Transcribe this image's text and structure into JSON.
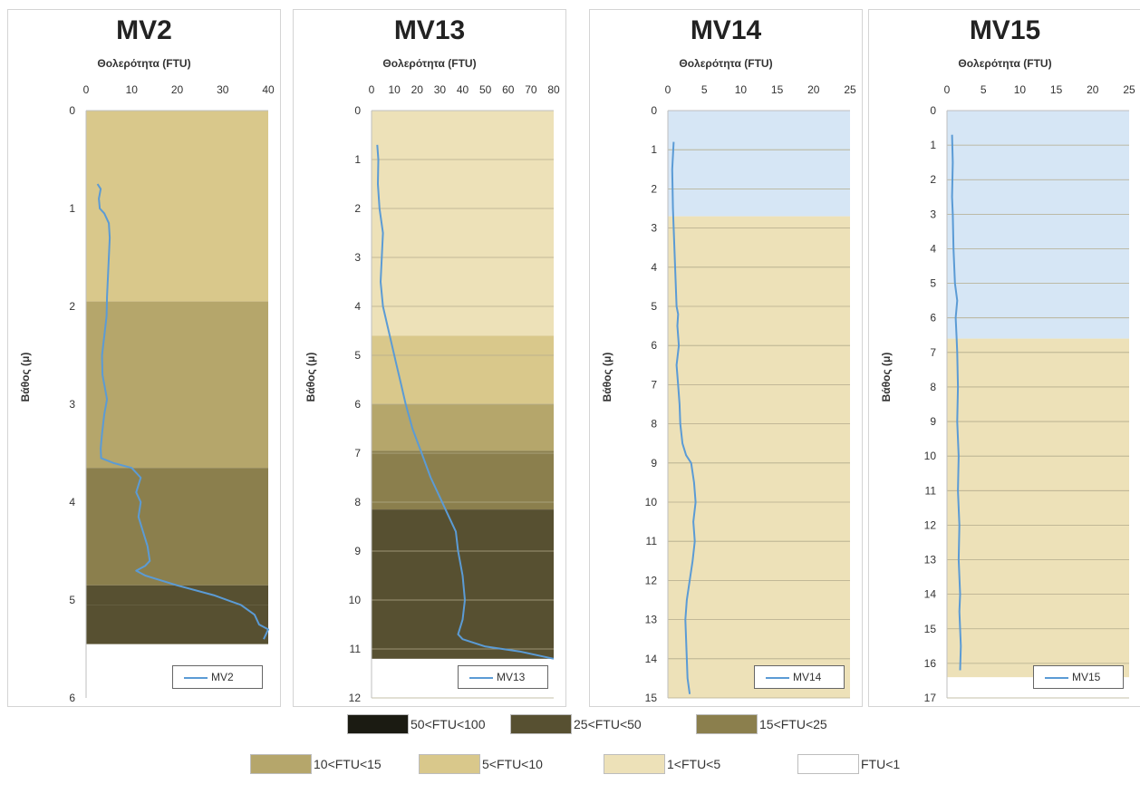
{
  "colors": {
    "z50_100": "#1b1b12",
    "z25_50": "#575031",
    "z15_25": "#8b7f4d",
    "z10_15": "#b5a66b",
    "z5_10": "#d9c88b",
    "z1_5": "#ede1b8",
    "z0_1": "#ffffff",
    "clear": "#d6e6f5",
    "line": "#5B9BD5"
  },
  "zone_legend": [
    {
      "label": "50<FTU<100",
      "color": "#1b1b12"
    },
    {
      "label": "25<FTU<50",
      "color": "#575031"
    },
    {
      "label": "15<FTU<25",
      "color": "#8b7f4d"
    },
    {
      "label": "10<FTU<15",
      "color": "#b5a66b"
    },
    {
      "label": "5<FTU<10",
      "color": "#d9c88b"
    },
    {
      "label": "1<FTU<5",
      "color": "#ede1b8"
    },
    {
      "label": "FTU<1",
      "color": "#ffffff"
    }
  ],
  "chart_data": [
    {
      "type": "line",
      "title": "MV2",
      "xlabel": "Θολερότητα (FTU)",
      "ylabel": "Βάθος (μ)",
      "xlim": [
        0,
        40
      ],
      "xticks": [
        0,
        10,
        20,
        30,
        40
      ],
      "ylim": [
        0,
        6
      ],
      "yticks": [
        0,
        1,
        2,
        3,
        4,
        5,
        6
      ],
      "y_inverted": true,
      "grid": false,
      "legend_position": "bottom-right",
      "bands": [
        {
          "from": 0,
          "to": 1.95,
          "color": "#d9c88b"
        },
        {
          "from": 1.95,
          "to": 3.65,
          "color": "#b5a66b"
        },
        {
          "from": 3.65,
          "to": 4.85,
          "color": "#8b7f4d"
        },
        {
          "from": 4.85,
          "to": 5.05,
          "color": "#575031"
        },
        {
          "from": 5.05,
          "to": 5.45,
          "color": "#575031"
        }
      ],
      "series": [
        {
          "name": "MV2",
          "x": [
            2.5,
            3.2,
            2.8,
            3.0,
            4.0,
            5.0,
            5.2,
            5.0,
            4.8,
            4.6,
            4.5,
            4.0,
            3.5,
            3.6,
            4.0,
            4.6,
            4.0,
            3.5,
            3.2,
            3.3,
            6.0,
            10.0,
            12.0,
            11.0,
            12.0,
            11.5,
            12.5,
            13.5,
            14.0,
            13.0,
            11.0,
            13.0,
            20.0,
            28.0,
            34.0,
            37.0,
            38.0,
            40.0,
            39.0
          ],
          "y": [
            0.75,
            0.8,
            0.9,
            1.0,
            1.05,
            1.15,
            1.3,
            1.5,
            1.7,
            1.9,
            2.1,
            2.3,
            2.5,
            2.7,
            2.8,
            2.95,
            3.1,
            3.3,
            3.45,
            3.55,
            3.6,
            3.65,
            3.75,
            3.9,
            4.0,
            4.15,
            4.3,
            4.45,
            4.6,
            4.65,
            4.7,
            4.75,
            4.85,
            4.95,
            5.05,
            5.15,
            5.25,
            5.3,
            5.4
          ]
        }
      ]
    },
    {
      "type": "line",
      "title": "MV13",
      "xlabel": "Θολερότητα (FTU)",
      "ylabel": "Βάθος (μ)",
      "xlim": [
        0,
        80
      ],
      "xticks": [
        0,
        10,
        20,
        30,
        40,
        50,
        60,
        70,
        80
      ],
      "ylim": [
        0,
        12
      ],
      "yticks": [
        0,
        1,
        2,
        3,
        4,
        5,
        6,
        7,
        8,
        9,
        10,
        11,
        12
      ],
      "y_inverted": true,
      "grid": true,
      "legend_position": "bottom-right",
      "bands": [
        {
          "from": 0,
          "to": 4.6,
          "color": "#ede1b8"
        },
        {
          "from": 4.6,
          "to": 6.0,
          "color": "#d9c88b"
        },
        {
          "from": 6.0,
          "to": 6.95,
          "color": "#b5a66b"
        },
        {
          "from": 6.95,
          "to": 8.15,
          "color": "#8b7f4d"
        },
        {
          "from": 8.15,
          "to": 11.2,
          "color": "#575031"
        }
      ],
      "series": [
        {
          "name": "MV13",
          "x": [
            2.5,
            3.0,
            2.8,
            3.5,
            5.0,
            4.5,
            4.0,
            5.0,
            7.0,
            9.0,
            11.0,
            13.0,
            15.0,
            18.0,
            22.0,
            26.0,
            30.0,
            33.0,
            37.0,
            38.0,
            40.0,
            41.0,
            40.0,
            38.0,
            40.0,
            50.0,
            65.0,
            80.0
          ],
          "y": [
            0.7,
            1.0,
            1.5,
            2.0,
            2.5,
            3.0,
            3.5,
            4.0,
            4.4,
            4.8,
            5.2,
            5.6,
            6.0,
            6.5,
            7.0,
            7.5,
            7.9,
            8.2,
            8.6,
            9.0,
            9.5,
            10.0,
            10.4,
            10.7,
            10.8,
            10.95,
            11.05,
            11.2
          ]
        }
      ]
    },
    {
      "type": "line",
      "title": "MV14",
      "xlabel": "Θολερότητα (FTU)",
      "ylabel": "Βάθος (μ)",
      "xlim": [
        0,
        25
      ],
      "xticks": [
        0,
        5,
        10,
        15,
        20,
        25
      ],
      "ylim": [
        0,
        15
      ],
      "yticks": [
        0,
        1,
        2,
        3,
        4,
        5,
        6,
        7,
        8,
        9,
        10,
        11,
        12,
        13,
        14,
        15
      ],
      "y_inverted": true,
      "grid": true,
      "legend_position": "bottom-right",
      "bands": [
        {
          "from": 0,
          "to": 2.7,
          "color": "#d6e6f5"
        },
        {
          "from": 2.7,
          "to": 15,
          "color": "#ede1b8"
        }
      ],
      "series": [
        {
          "name": "MV14",
          "x": [
            0.8,
            0.6,
            0.7,
            0.8,
            0.9,
            1.0,
            1.1,
            1.2,
            1.4,
            1.3,
            1.5,
            1.2,
            1.4,
            1.6,
            1.7,
            2.0,
            2.5,
            3.2,
            3.6,
            3.8,
            3.5,
            3.7,
            3.4,
            3.0,
            2.6,
            2.4,
            2.5,
            2.7,
            3.0
          ],
          "y": [
            0.8,
            1.5,
            2.5,
            3.0,
            3.5,
            4.0,
            4.5,
            5.0,
            5.2,
            5.5,
            6.0,
            6.5,
            7.0,
            7.5,
            8.0,
            8.5,
            8.8,
            9.0,
            9.5,
            10.0,
            10.5,
            11.0,
            11.5,
            12.0,
            12.5,
            13.0,
            13.5,
            14.5,
            14.9
          ]
        }
      ]
    },
    {
      "type": "line",
      "title": "MV15",
      "xlabel": "Θολερότητα (FTU)",
      "ylabel": "Βάθος (μ)",
      "xlim": [
        0,
        25
      ],
      "xticks": [
        0,
        5,
        10,
        15,
        20,
        25
      ],
      "ylim": [
        0,
        17
      ],
      "yticks": [
        0,
        1,
        2,
        3,
        4,
        5,
        6,
        7,
        8,
        9,
        10,
        11,
        12,
        13,
        14,
        15,
        16,
        17
      ],
      "y_inverted": true,
      "grid": true,
      "legend_position": "bottom-right",
      "bands": [
        {
          "from": 0,
          "to": 6.6,
          "color": "#d6e6f5"
        },
        {
          "from": 6.6,
          "to": 16.4,
          "color": "#ede1b8"
        }
      ],
      "series": [
        {
          "name": "MV15",
          "x": [
            0.7,
            0.8,
            0.7,
            0.8,
            0.9,
            1.0,
            1.1,
            1.4,
            1.2,
            1.3,
            1.4,
            1.5,
            1.4,
            1.6,
            1.5,
            1.7,
            1.6,
            1.8,
            1.7,
            1.8,
            1.9,
            1.8
          ],
          "y": [
            0.7,
            1.5,
            2.5,
            3.0,
            4.0,
            4.5,
            5.0,
            5.5,
            6.0,
            6.5,
            7.0,
            8.0,
            9.0,
            10.0,
            11.0,
            12.0,
            13.0,
            14.0,
            14.5,
            15.0,
            15.5,
            16.2
          ]
        }
      ]
    }
  ]
}
